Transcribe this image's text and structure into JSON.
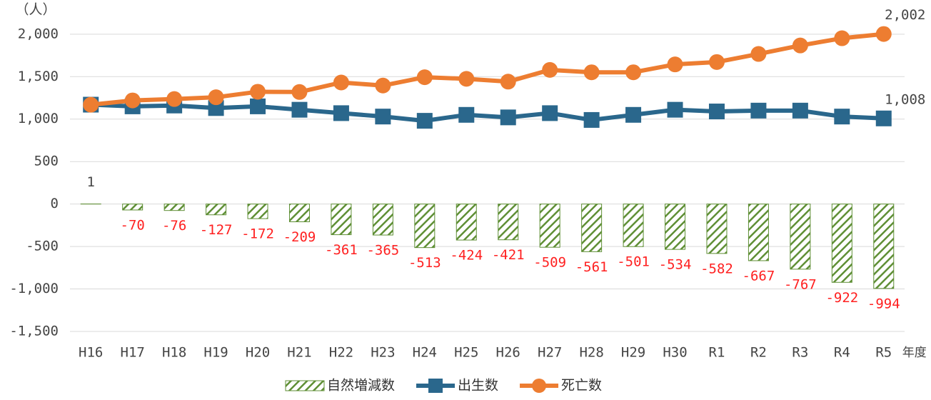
{
  "chart_data": {
    "type": "combo",
    "y_label": "（人）",
    "x_label": "年度",
    "categories": [
      "H16",
      "H17",
      "H18",
      "H19",
      "H20",
      "H21",
      "H22",
      "H23",
      "H24",
      "H25",
      "H26",
      "H27",
      "H28",
      "H29",
      "H30",
      "R1",
      "R2",
      "R3",
      "R4",
      "R5"
    ],
    "series": [
      {
        "name": "自然増減数",
        "type": "bar",
        "color": "#5f8f35",
        "label_color": "#ff2020",
        "values": [
          1,
          -70,
          -76,
          -127,
          -172,
          -209,
          -361,
          -365,
          -513,
          -424,
          -421,
          -509,
          -561,
          -501,
          -534,
          -582,
          -667,
          -767,
          -922,
          -994
        ]
      },
      {
        "name": "出生数",
        "type": "line",
        "marker": "square",
        "color": "#2a678c",
        "values": [
          1170,
          1150,
          1160,
          1130,
          1150,
          1110,
          1070,
          1030,
          980,
          1050,
          1020,
          1070,
          990,
          1050,
          1110,
          1090,
          1100,
          1100,
          1030,
          1008
        ],
        "value_labels": [
          null,
          null,
          null,
          null,
          null,
          null,
          null,
          null,
          null,
          null,
          null,
          null,
          null,
          null,
          null,
          null,
          null,
          null,
          null,
          "1,008"
        ]
      },
      {
        "name": "死亡数",
        "type": "line",
        "marker": "circle",
        "color": "#ed7d31",
        "values": [
          1169,
          1220,
          1236,
          1257,
          1322,
          1319,
          1431,
          1395,
          1493,
          1474,
          1441,
          1579,
          1551,
          1551,
          1644,
          1672,
          1767,
          1867,
          1952,
          2002
        ],
        "value_labels": [
          null,
          null,
          null,
          null,
          null,
          null,
          null,
          null,
          null,
          null,
          null,
          null,
          null,
          null,
          null,
          null,
          null,
          null,
          null,
          "2,002"
        ]
      }
    ],
    "ylim": [
      -1500,
      2150
    ],
    "yticks": [
      {
        "value": 2000,
        "label": "2,000"
      },
      {
        "value": 1500,
        "label": "1,500"
      },
      {
        "value": 1000,
        "label": "1,000"
      },
      500,
      0,
      -500,
      {
        "value": -1000,
        "label": "-1,000"
      },
      {
        "value": -1500,
        "label": "-1,500"
      }
    ],
    "grid": true,
    "legend": "bottom"
  }
}
